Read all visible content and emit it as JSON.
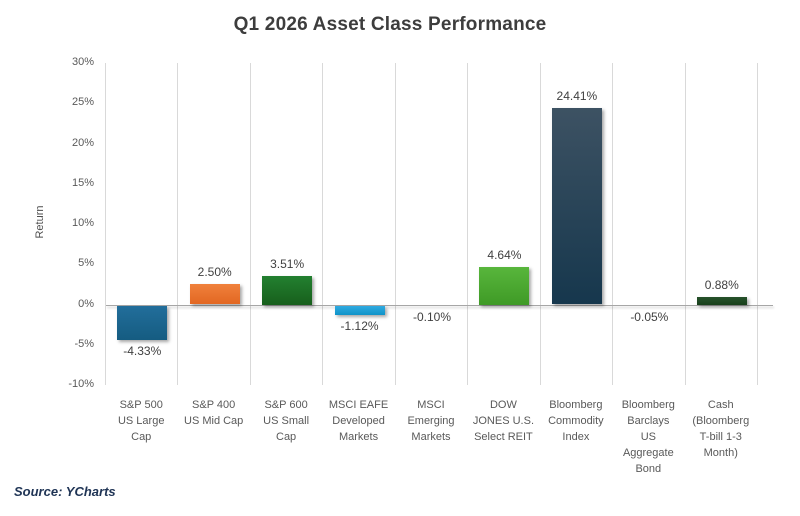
{
  "title": "Q1 2026 Asset Class Performance",
  "source_note": "Source: YCharts",
  "chart_data": {
    "type": "bar",
    "title": "Q1 2026 Asset Class Performance",
    "xlabel": "",
    "ylabel": "Return",
    "ylim": [
      -10,
      30
    ],
    "yticks": [
      30,
      25,
      20,
      15,
      10,
      5,
      0,
      -5,
      -10
    ],
    "ytick_suffix": "%",
    "grid": "vertical-category-separators-only",
    "legend": "none",
    "categories": [
      "S&P 500\nUS Large\nCap",
      "S&P 400\nUS Mid Cap",
      "S&P 600\nUS Small\nCap",
      "MSCI EAFE\nDeveloped\nMarkets",
      "MSCI\nEmerging\nMarkets",
      "DOW\nJONES U.S.\nSelect REIT",
      "Bloomberg\nCommodity\nIndex",
      "Bloomberg\nBarclays\nUS\nAggregate\nBond",
      "Cash\n(Bloomberg\nT-bill 1-3\nMonth)"
    ],
    "values": [
      -4.33,
      2.5,
      3.51,
      -1.12,
      -0.1,
      4.64,
      24.41,
      -0.05,
      0.88
    ],
    "value_labels": [
      "-4.33%",
      "2.50%",
      "3.51%",
      "-1.12%",
      "-0.10%",
      "4.64%",
      "24.41%",
      "-0.05%",
      "0.88%"
    ],
    "bar_colors": [
      {
        "top": "#226e9b",
        "bottom": "#155c81"
      },
      {
        "top": "#f0813c",
        "bottom": "#e26722"
      },
      {
        "top": "#238030",
        "bottom": "#175f1c"
      },
      {
        "top": "#2faae1",
        "bottom": "#0f93c8"
      },
      {
        "top": "#bfbfbf",
        "bottom": "#bfbfbf"
      },
      {
        "top": "#58b63c",
        "bottom": "#3f9a26"
      },
      {
        "top": "#3d5263",
        "bottom": "#16374d"
      },
      {
        "top": "#bfbfbf",
        "bottom": "#bfbfbf"
      },
      {
        "top": "#27522b",
        "bottom": "#173f1a"
      }
    ],
    "style_colors": {
      "gridline": "#d9d9d9",
      "zero_line": "#a6a6a6",
      "title_text": "#3d3d3d",
      "tick_text": "#595959",
      "value_text": "#404040",
      "source_text": "#1f3455"
    }
  }
}
